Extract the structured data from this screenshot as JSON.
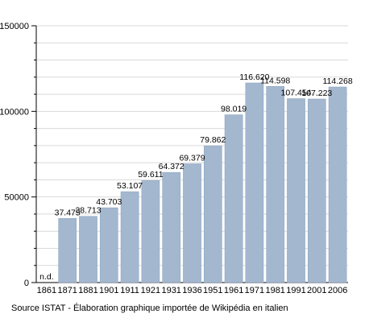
{
  "chart_data": {
    "type": "bar",
    "categories": [
      "1861",
      "1871",
      "1881",
      "1901",
      "1911",
      "1921",
      "1931",
      "1936",
      "1951",
      "1961",
      "1971",
      "1981",
      "1991",
      "2001",
      "2006"
    ],
    "values": [
      null,
      37475,
      38713,
      43703,
      53107,
      59611,
      64372,
      69379,
      79862,
      98019,
      116620,
      114598,
      107454,
      107223,
      114268
    ],
    "data_labels": [
      "n.d.",
      "37.475",
      "38.713",
      "43.703",
      "53.107",
      "59.611",
      "64.372",
      "69.379",
      "79.862",
      "98.019",
      "116.620",
      "114.598",
      "107.454",
      "107.223",
      "114.268"
    ],
    "y_ticks": [
      "0",
      "50000",
      "100000",
      "150000"
    ],
    "ylim": [
      0,
      150000
    ],
    "grid": true,
    "bar_color": "#a3b7cf",
    "bar_edge_color": "#8ea4bf"
  },
  "source_text": "Source ISTAT - Élaboration graphique importée de Wikipédia en italien"
}
